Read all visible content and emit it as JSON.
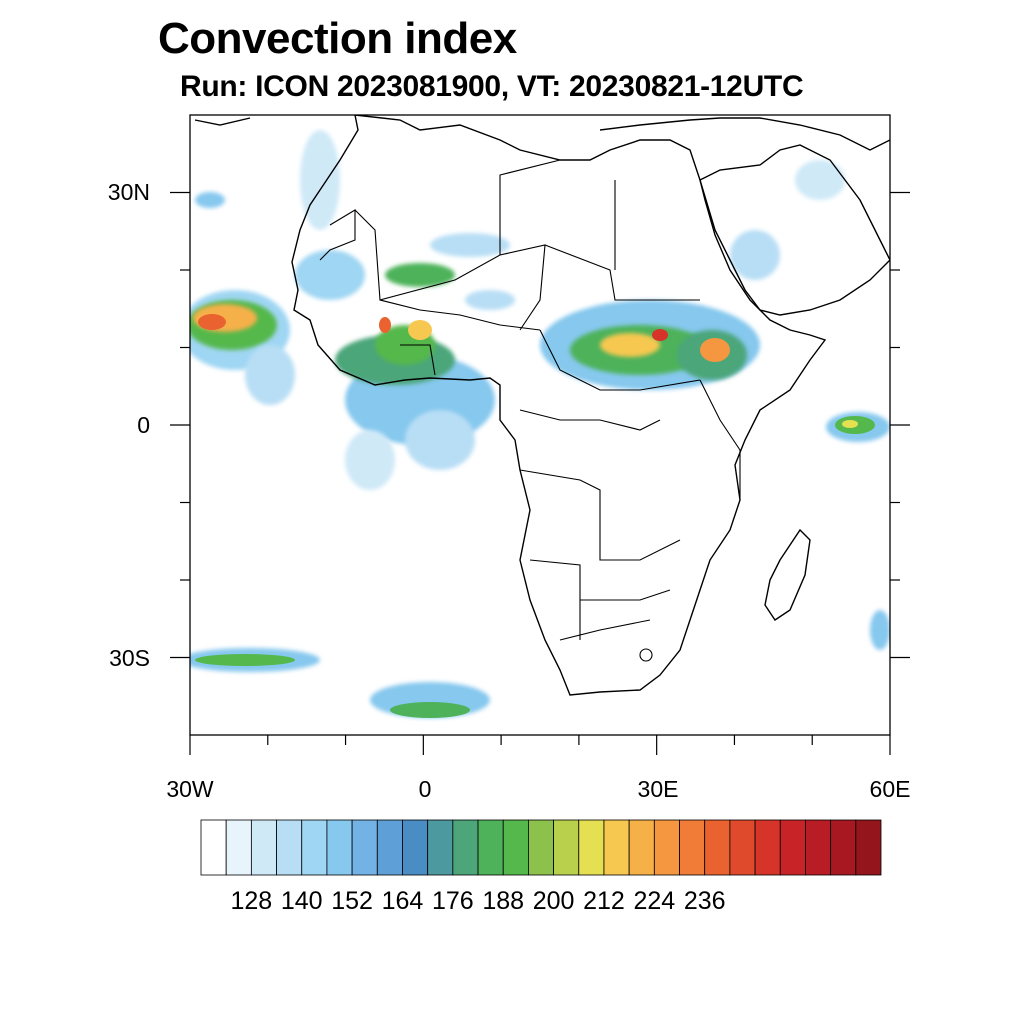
{
  "title": "Convection index",
  "subtitle": "Run: ICON 2023081900,  VT: 20230821-12UTC",
  "map": {
    "lat_labels": [
      "30N",
      "0",
      "30S"
    ],
    "lon_labels": [
      "30W",
      "0",
      "30E",
      "60E"
    ],
    "lat_range": [
      -40,
      40
    ],
    "lon_range": [
      -30,
      60
    ]
  },
  "colorbar": {
    "labels": [
      "128",
      "140",
      "152",
      "164",
      "176",
      "188",
      "200",
      "212",
      "224",
      "236"
    ],
    "colors": [
      "#ffffff",
      "#e7f4fb",
      "#cfe9f7",
      "#b8def5",
      "#9fd6f3",
      "#86c8ee",
      "#72b2e4",
      "#5d9fd6",
      "#4a8dc5",
      "#4c9aa0",
      "#4ca67a",
      "#4db25a",
      "#55b84c",
      "#8cc24c",
      "#b8d04c",
      "#e4e052",
      "#f6c850",
      "#f6b048",
      "#f59640",
      "#f07c38",
      "#e96230",
      "#e04a2c",
      "#d63428",
      "#c82428",
      "#b81c24",
      "#a81820",
      "#94161c"
    ]
  }
}
